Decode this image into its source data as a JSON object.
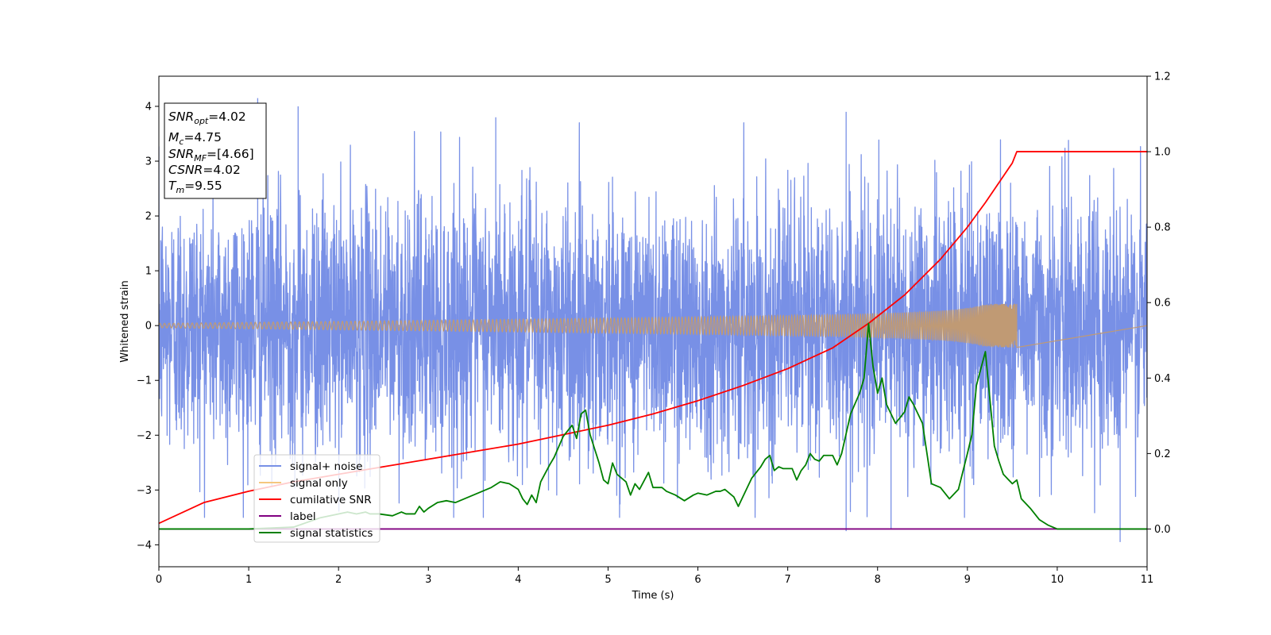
{
  "chart_data": {
    "type": "line",
    "xlabel": "Time (s)",
    "ylabel_left": "Whitened strain",
    "ylabel_right": "",
    "xlim": [
      0,
      11
    ],
    "ylim_left": [
      -4.4,
      4.55
    ],
    "ylim_right": [
      -0.1,
      1.2
    ],
    "x_ticks": [
      0,
      1,
      2,
      3,
      4,
      5,
      6,
      7,
      8,
      9,
      10,
      11
    ],
    "y_ticks_left": [
      -4,
      -3,
      -2,
      -1,
      0,
      1,
      2,
      3,
      4
    ],
    "y_ticks_right": [
      0.0,
      0.2,
      0.4,
      0.6,
      0.8,
      1.0,
      1.2
    ],
    "grid": false,
    "legend_position": "lower-left",
    "info_box": {
      "position": "top-left",
      "lines": [
        {
          "var": "SNR",
          "sub": "opt",
          "value": "=4.02"
        },
        {
          "var": "M",
          "sub": "c",
          "value": "=4.75"
        },
        {
          "var": "SNR",
          "sub": "MF",
          "value": "=[4.66]"
        },
        {
          "var": "CSNR",
          "sub": "",
          "value": "=4.02"
        },
        {
          "var": "T",
          "sub": "m",
          "value": "=9.55"
        }
      ]
    },
    "colors": {
      "signal_noise": "#7890e6",
      "signal_only": "#c09a74",
      "cumulative_snr": "#ff0000",
      "label": "#800080",
      "signal_statistics": "#008000"
    },
    "series": [
      {
        "name": "signal+ noise",
        "axis": "left",
        "description_type": "noise",
        "x_range": [
          0,
          11
        ],
        "typical_band": [
          -1.9,
          1.9
        ],
        "notable_peaks": [
          {
            "x": 1.1,
            "y": 4.15
          },
          {
            "x": 1.55,
            "y": 4.0
          },
          {
            "x": 3.75,
            "y": 3.8
          },
          {
            "x": 7.65,
            "y": 3.9
          },
          {
            "x": 7.65,
            "y": -3.75
          },
          {
            "x": 8.15,
            "y": -3.7
          },
          {
            "x": 10.7,
            "y": -3.95
          }
        ]
      },
      {
        "name": "signal only",
        "axis": "left",
        "description_type": "chirp",
        "x_range": [
          0,
          9.55
        ],
        "amplitude_start": 0.03,
        "amplitude_end": 0.4,
        "merger_time": 9.55
      },
      {
        "name": "cumilative SNR",
        "axis": "right",
        "x": [
          0,
          0.5,
          1.0,
          1.5,
          2.0,
          2.5,
          3.0,
          3.5,
          4.0,
          4.5,
          5.0,
          5.5,
          6.0,
          6.5,
          7.0,
          7.5,
          7.9,
          8.3,
          8.7,
          9.0,
          9.2,
          9.4,
          9.5,
          9.55,
          10.0,
          11.0
        ],
        "y": [
          0.015,
          0.07,
          0.1,
          0.125,
          0.145,
          0.165,
          0.185,
          0.205,
          0.225,
          0.25,
          0.275,
          0.305,
          0.34,
          0.38,
          0.425,
          0.48,
          0.545,
          0.62,
          0.715,
          0.8,
          0.865,
          0.935,
          0.97,
          1.0,
          1.0,
          1.0
        ]
      },
      {
        "name": "label",
        "axis": "right",
        "x": [
          0,
          11
        ],
        "y": [
          0.0,
          0.0
        ]
      },
      {
        "name": "signal statistics",
        "axis": "right",
        "x": [
          0,
          1,
          1.5,
          1.8,
          2.0,
          2.1,
          2.2,
          2.3,
          2.35,
          2.45,
          2.6,
          2.7,
          2.75,
          2.85,
          2.9,
          2.95,
          3.0,
          3.1,
          3.2,
          3.3,
          3.5,
          3.6,
          3.7,
          3.8,
          3.9,
          4.0,
          4.05,
          4.1,
          4.15,
          4.2,
          4.25,
          4.35,
          4.4,
          4.5,
          4.6,
          4.65,
          4.7,
          4.75,
          4.8,
          4.9,
          4.95,
          5.0,
          5.05,
          5.1,
          5.2,
          5.25,
          5.3,
          5.35,
          5.45,
          5.5,
          5.6,
          5.65,
          5.75,
          5.85,
          5.95,
          6.0,
          6.1,
          6.2,
          6.25,
          6.3,
          6.35,
          6.4,
          6.45,
          6.55,
          6.6,
          6.7,
          6.75,
          6.8,
          6.85,
          6.9,
          6.95,
          7.05,
          7.1,
          7.15,
          7.2,
          7.25,
          7.3,
          7.35,
          7.4,
          7.5,
          7.55,
          7.6,
          7.7,
          7.8,
          7.85,
          7.9,
          7.95,
          8.0,
          8.05,
          8.1,
          8.2,
          8.3,
          8.35,
          8.4,
          8.5,
          8.6,
          8.7,
          8.8,
          8.9,
          9.0,
          9.05,
          9.1,
          9.2,
          9.3,
          9.35,
          9.4,
          9.5,
          9.55,
          9.6,
          9.7,
          9.8,
          9.9,
          10.0,
          10.2,
          10.5,
          11.0
        ],
        "y": [
          0.0,
          0.0,
          0.005,
          0.03,
          0.04,
          0.045,
          0.04,
          0.045,
          0.04,
          0.04,
          0.035,
          0.045,
          0.04,
          0.04,
          0.06,
          0.045,
          0.055,
          0.07,
          0.075,
          0.07,
          0.09,
          0.1,
          0.11,
          0.125,
          0.12,
          0.105,
          0.08,
          0.065,
          0.09,
          0.07,
          0.125,
          0.17,
          0.19,
          0.245,
          0.275,
          0.24,
          0.305,
          0.315,
          0.25,
          0.175,
          0.13,
          0.12,
          0.175,
          0.145,
          0.125,
          0.09,
          0.12,
          0.105,
          0.15,
          0.11,
          0.11,
          0.1,
          0.09,
          0.075,
          0.09,
          0.095,
          0.09,
          0.1,
          0.1,
          0.105,
          0.095,
          0.085,
          0.06,
          0.11,
          0.135,
          0.165,
          0.185,
          0.195,
          0.155,
          0.165,
          0.16,
          0.16,
          0.13,
          0.155,
          0.17,
          0.2,
          0.185,
          0.18,
          0.195,
          0.195,
          0.17,
          0.2,
          0.305,
          0.36,
          0.4,
          0.545,
          0.43,
          0.36,
          0.4,
          0.33,
          0.28,
          0.31,
          0.35,
          0.33,
          0.28,
          0.12,
          0.11,
          0.08,
          0.105,
          0.2,
          0.25,
          0.38,
          0.47,
          0.22,
          0.18,
          0.145,
          0.12,
          0.13,
          0.08,
          0.055,
          0.025,
          0.01,
          0.0,
          0.0,
          0.0,
          0.0
        ]
      }
    ]
  }
}
